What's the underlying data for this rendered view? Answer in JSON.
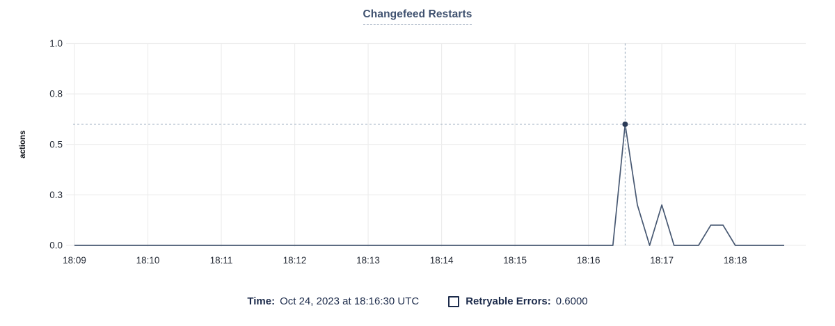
{
  "header": {
    "title": "Changefeed Restarts"
  },
  "footer": {
    "time_label": "Time:",
    "time_value": "Oct 24, 2023 at 18:16:30 UTC",
    "series_label": "Retryable Errors:",
    "series_value": "0.6000",
    "series_checkbox_state": "unchecked"
  },
  "chart_data": {
    "type": "line",
    "title": "Changefeed Restarts",
    "xlabel": "",
    "ylabel": "actions",
    "ylim": [
      0,
      1
    ],
    "grid": true,
    "legend_position": "bottom",
    "x_axis": {
      "start_time": "18:09:00",
      "domain_seconds": [
        0,
        598
      ],
      "tick_seconds": [
        0,
        60,
        120,
        180,
        240,
        300,
        360,
        420,
        480,
        540
      ],
      "tick_labels": [
        "18:09",
        "18:10",
        "18:11",
        "18:12",
        "18:13",
        "18:14",
        "18:15",
        "18:16",
        "18:17",
        "18:18"
      ]
    },
    "y_axis": {
      "tick_values": [
        0,
        0.25,
        0.5,
        0.75,
        1.0
      ],
      "tick_labels": [
        "0.0",
        "0.3",
        "0.5",
        "0.8",
        "1.0"
      ]
    },
    "series": [
      {
        "name": "Retryable Errors",
        "color": "#475872",
        "points": [
          {
            "t": 0,
            "time": "18:09:00",
            "v": 0
          },
          {
            "t": 440,
            "time": "18:16:20",
            "v": 0
          },
          {
            "t": 450,
            "time": "18:16:30",
            "v": 0.6
          },
          {
            "t": 460,
            "time": "18:16:40",
            "v": 0.2
          },
          {
            "t": 470,
            "time": "18:16:50",
            "v": 0
          },
          {
            "t": 480,
            "time": "18:17:00",
            "v": 0.2
          },
          {
            "t": 490,
            "time": "18:17:10",
            "v": 0
          },
          {
            "t": 510,
            "time": "18:17:30",
            "v": 0
          },
          {
            "t": 520,
            "time": "18:17:40",
            "v": 0.1
          },
          {
            "t": 530,
            "time": "18:17:50",
            "v": 0.1
          },
          {
            "t": 540,
            "time": "18:18:00",
            "v": 0
          },
          {
            "t": 580,
            "time": "18:18:40",
            "v": 0
          }
        ]
      }
    ],
    "crosshair": {
      "t": 450,
      "time": "18:16:30",
      "value": 0.6,
      "value_label": "0.6000"
    },
    "colors": {
      "line": "#475872",
      "dot": "#2a3a57",
      "crosshair": "#94a6b9",
      "grid": "#ededed",
      "axis_text": "#242a35",
      "title_text": "#3f516f",
      "footer_text": "#1c2b4b"
    }
  }
}
